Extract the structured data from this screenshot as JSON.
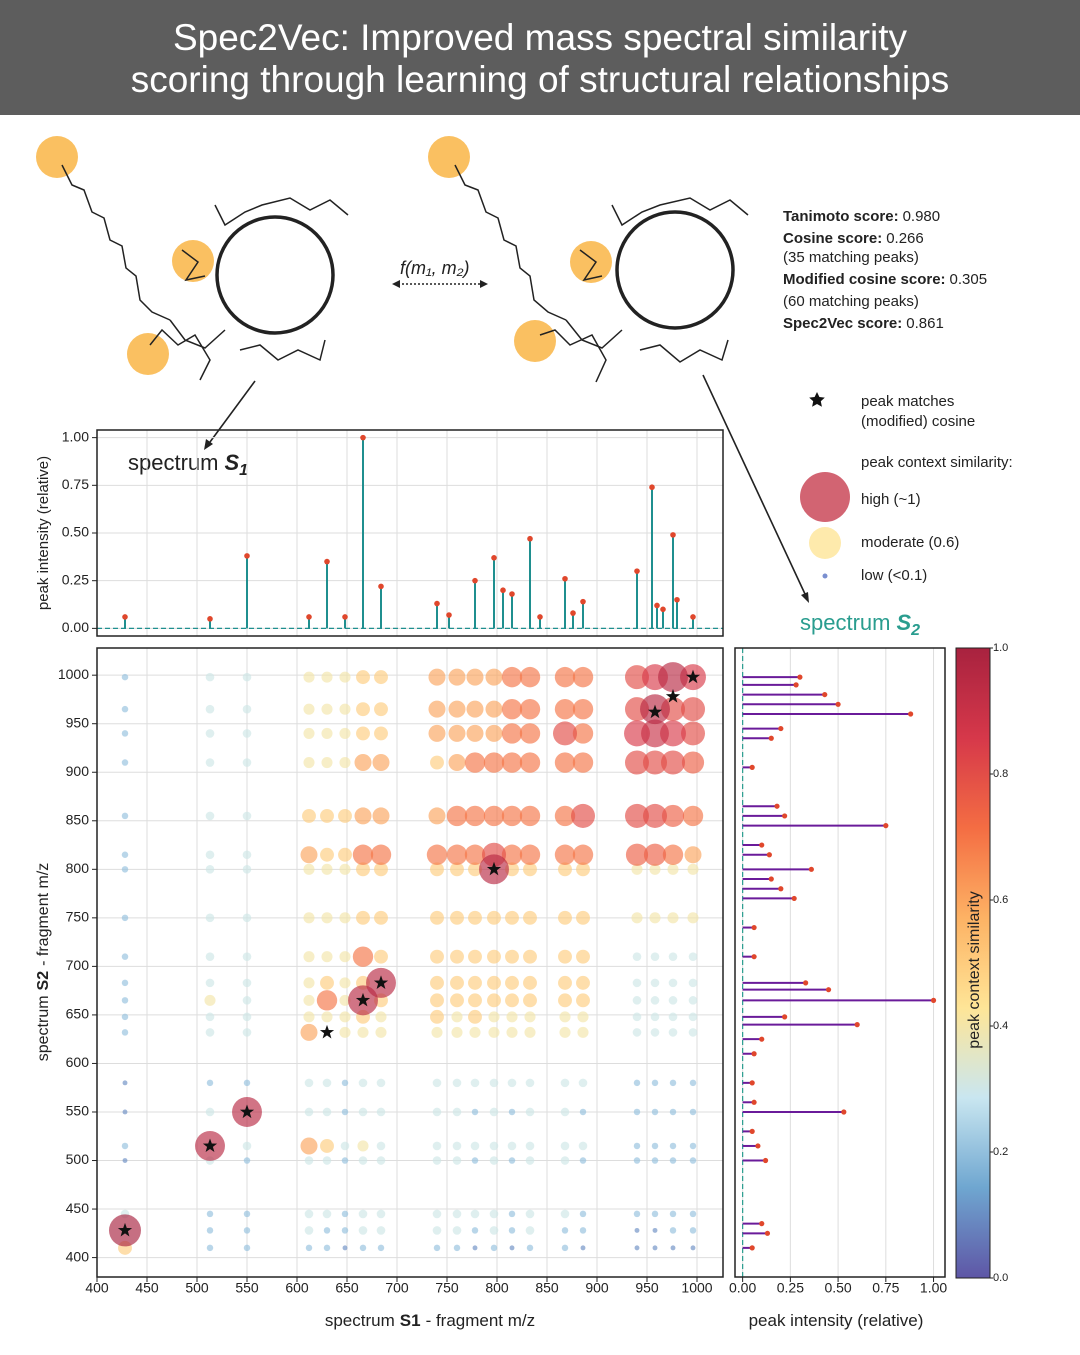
{
  "header": {
    "title": [
      "Spec2Vec: Improved mass spectral similarity",
      "scoring through learning of structural relationships"
    ]
  },
  "diagram": {
    "function_label": "f(m₁, m₂)"
  },
  "scores": [
    {
      "label": "Tanimoto score:",
      "value": "0.980"
    },
    {
      "label": "Cosine score:",
      "value": "0.266",
      "note": "(35 matching peaks)"
    },
    {
      "label": "Modified cosine score:",
      "value": "0.305",
      "note": "(60 matching peaks)"
    },
    {
      "label": "Spec2Vec score:",
      "value": "0.861"
    }
  ],
  "legend": {
    "star": [
      "peak matches",
      "(modified) cosine"
    ],
    "title": "peak context similarity:",
    "high": "high (~1)",
    "moderate": "moderate (0.6)",
    "low": "low (<0.1)"
  },
  "chart_data": [
    {
      "type": "stem",
      "label": {
        "text": "spectrum",
        "symbol": "S",
        "subscript": "1"
      },
      "ylabel": "peak intensity (relative)",
      "color": "#1f8f8f",
      "marker_color": "#e0472c",
      "grid": true,
      "x": [
        428,
        513,
        550,
        612,
        630,
        648,
        666,
        684,
        740,
        752,
        778,
        797,
        806,
        815,
        833,
        843,
        868,
        876,
        886,
        940,
        955,
        960,
        966,
        976,
        980,
        996
      ],
      "values": [
        0.06,
        0.05,
        0.38,
        0.06,
        0.35,
        0.06,
        1.0,
        0.22,
        0.13,
        0.07,
        0.25,
        0.37,
        0.2,
        0.18,
        0.47,
        0.06,
        0.26,
        0.08,
        0.14,
        0.3,
        0.74,
        0.12,
        0.1,
        0.49,
        0.15,
        0.06
      ],
      "xlim": [
        400,
        1026
      ],
      "xticks": [
        400,
        450,
        500,
        550,
        600,
        650,
        700,
        750,
        800,
        850,
        900,
        950,
        1000
      ],
      "ylim": [
        -0.04,
        1.04
      ],
      "yticks": [
        {
          "value": 0,
          "label": "0.00"
        },
        {
          "value": 0.25,
          "label": "0.25"
        },
        {
          "value": 0.5,
          "label": "0.50"
        },
        {
          "value": 0.75,
          "label": "0.75"
        },
        {
          "value": 1,
          "label": "1.00"
        }
      ]
    },
    {
      "type": "bubble_matrix",
      "xlabel": [
        "spectrum",
        "S1",
        "- fragment m/z"
      ],
      "ylabel": [
        "spectrum",
        "S2",
        "- fragment m/z"
      ],
      "grid": true,
      "columns": [
        428,
        513,
        550,
        612,
        630,
        648,
        666,
        684,
        740,
        760,
        778,
        797,
        815,
        833,
        868,
        886,
        940,
        958,
        976,
        996
      ],
      "rows": [
        410,
        428,
        445,
        500,
        515,
        550,
        580,
        632,
        648,
        665,
        683,
        710,
        750,
        800,
        815,
        855,
        910,
        940,
        965,
        998
      ],
      "similarity": [
        [
          0.5,
          0.2,
          0.2,
          0.2,
          0.2,
          0.1,
          0.2,
          0.2,
          0.2,
          0.2,
          0.1,
          0.2,
          0.1,
          0.2,
          0.2,
          0.1,
          0.1,
          0.1,
          0.1,
          0.1
        ],
        [
          1.0,
          0.2,
          0.2,
          0.3,
          0.2,
          0.2,
          0.3,
          0.3,
          0.3,
          0.3,
          0.2,
          0.3,
          0.2,
          0.3,
          0.2,
          0.2,
          0.1,
          0.1,
          0.2,
          0.2
        ],
        [
          0.3,
          0.2,
          0.2,
          0.3,
          0.3,
          0.2,
          0.3,
          0.3,
          0.3,
          0.3,
          0.3,
          0.3,
          0.2,
          0.3,
          0.3,
          0.2,
          0.2,
          0.2,
          0.2,
          0.2
        ],
        [
          0.1,
          0.3,
          0.2,
          0.3,
          0.3,
          0.2,
          0.3,
          0.3,
          0.3,
          0.3,
          0.2,
          0.3,
          0.2,
          0.3,
          0.3,
          0.2,
          0.2,
          0.2,
          0.2,
          0.2
        ],
        [
          0.2,
          0.95,
          0.3,
          0.6,
          0.5,
          0.3,
          0.4,
          0.3,
          0.3,
          0.3,
          0.3,
          0.3,
          0.3,
          0.3,
          0.3,
          0.3,
          0.2,
          0.2,
          0.2,
          0.2
        ],
        [
          0.1,
          0.3,
          0.95,
          0.3,
          0.3,
          0.2,
          0.3,
          0.3,
          0.3,
          0.3,
          0.2,
          0.3,
          0.2,
          0.3,
          0.3,
          0.2,
          0.2,
          0.2,
          0.2,
          0.2
        ],
        [
          0.1,
          0.2,
          0.2,
          0.3,
          0.3,
          0.2,
          0.3,
          0.3,
          0.3,
          0.3,
          0.3,
          0.3,
          0.3,
          0.3,
          0.3,
          0.3,
          0.2,
          0.2,
          0.2,
          0.2
        ],
        [
          0.2,
          0.3,
          0.3,
          0.6,
          0.1,
          0.4,
          0.4,
          0.4,
          0.4,
          0.4,
          0.4,
          0.4,
          0.4,
          0.4,
          0.4,
          0.4,
          0.3,
          0.3,
          0.3,
          0.3
        ],
        [
          0.2,
          0.3,
          0.3,
          0.4,
          0.4,
          0.4,
          0.5,
          0.4,
          0.5,
          0.4,
          0.5,
          0.4,
          0.4,
          0.4,
          0.4,
          0.4,
          0.3,
          0.3,
          0.3,
          0.3
        ],
        [
          0.2,
          0.4,
          0.3,
          0.4,
          0.7,
          0.4,
          0.95,
          0.5,
          0.5,
          0.5,
          0.5,
          0.5,
          0.5,
          0.5,
          0.5,
          0.5,
          0.3,
          0.3,
          0.3,
          0.3
        ],
        [
          0.2,
          0.3,
          0.3,
          0.4,
          0.5,
          0.4,
          0.5,
          0.95,
          0.5,
          0.5,
          0.5,
          0.5,
          0.5,
          0.5,
          0.5,
          0.5,
          0.3,
          0.3,
          0.3,
          0.3
        ],
        [
          0.2,
          0.3,
          0.3,
          0.4,
          0.4,
          0.4,
          0.7,
          0.5,
          0.5,
          0.5,
          0.5,
          0.5,
          0.5,
          0.5,
          0.5,
          0.5,
          0.3,
          0.3,
          0.3,
          0.3
        ],
        [
          0.2,
          0.3,
          0.3,
          0.4,
          0.4,
          0.4,
          0.5,
          0.5,
          0.5,
          0.5,
          0.5,
          0.5,
          0.5,
          0.5,
          0.5,
          0.5,
          0.4,
          0.4,
          0.4,
          0.4
        ],
        [
          0.2,
          0.3,
          0.3,
          0.4,
          0.4,
          0.4,
          0.5,
          0.5,
          0.5,
          0.5,
          0.5,
          0.95,
          0.5,
          0.5,
          0.5,
          0.5,
          0.4,
          0.4,
          0.4,
          0.4
        ],
        [
          0.2,
          0.3,
          0.3,
          0.6,
          0.5,
          0.5,
          0.7,
          0.7,
          0.7,
          0.7,
          0.7,
          0.8,
          0.7,
          0.7,
          0.7,
          0.7,
          0.75,
          0.75,
          0.7,
          0.6
        ],
        [
          0.2,
          0.3,
          0.3,
          0.5,
          0.5,
          0.5,
          0.6,
          0.6,
          0.6,
          0.7,
          0.7,
          0.7,
          0.7,
          0.7,
          0.7,
          0.8,
          0.8,
          0.8,
          0.75,
          0.7
        ],
        [
          0.2,
          0.3,
          0.3,
          0.4,
          0.4,
          0.4,
          0.6,
          0.6,
          0.5,
          0.6,
          0.7,
          0.7,
          0.7,
          0.7,
          0.7,
          0.7,
          0.8,
          0.8,
          0.8,
          0.75
        ],
        [
          0.2,
          0.3,
          0.3,
          0.4,
          0.4,
          0.4,
          0.5,
          0.5,
          0.6,
          0.6,
          0.6,
          0.6,
          0.7,
          0.7,
          0.8,
          0.7,
          0.85,
          0.9,
          0.85,
          0.8
        ],
        [
          0.2,
          0.3,
          0.3,
          0.4,
          0.4,
          0.4,
          0.5,
          0.5,
          0.6,
          0.6,
          0.6,
          0.6,
          0.7,
          0.7,
          0.7,
          0.7,
          0.8,
          0.95,
          0.8,
          0.8
        ],
        [
          0.2,
          0.3,
          0.3,
          0.4,
          0.4,
          0.4,
          0.5,
          0.5,
          0.6,
          0.6,
          0.6,
          0.6,
          0.7,
          0.7,
          0.7,
          0.7,
          0.8,
          0.85,
          0.95,
          0.85
        ]
      ],
      "matches_x": [
        428,
        513,
        550,
        630,
        666,
        684,
        797,
        958,
        976,
        996
      ],
      "matches_y": [
        428,
        515,
        550,
        632,
        665,
        683,
        800,
        962,
        978,
        998
      ],
      "xlim": [
        400,
        1026
      ],
      "xticks": [
        400,
        450,
        500,
        550,
        600,
        650,
        700,
        750,
        800,
        850,
        900,
        950,
        1000
      ],
      "ylim": [
        380,
        1028
      ],
      "yticks": [
        400,
        450,
        500,
        550,
        600,
        650,
        700,
        750,
        800,
        850,
        900,
        950,
        1000
      ]
    },
    {
      "type": "hstem",
      "label": {
        "text": "spectrum",
        "symbol": "S",
        "subscript": "2"
      },
      "label_color": "#2a9d8f",
      "xlabel": "peak intensity (relative)",
      "color": "#6a1b9a",
      "marker_color": "#e0472c",
      "baseline_color": "#2a9d8f",
      "grid": true,
      "y": [
        410,
        425,
        435,
        500,
        515,
        530,
        550,
        560,
        580,
        610,
        625,
        640,
        648,
        665,
        676,
        683,
        710,
        740,
        770,
        780,
        790,
        800,
        815,
        825,
        845,
        855,
        865,
        905,
        935,
        945,
        960,
        970,
        980,
        990,
        998
      ],
      "values": [
        0.05,
        0.13,
        0.1,
        0.12,
        0.08,
        0.05,
        0.53,
        0.06,
        0.05,
        0.06,
        0.1,
        0.6,
        0.22,
        1.0,
        0.45,
        0.33,
        0.06,
        0.06,
        0.27,
        0.2,
        0.15,
        0.36,
        0.14,
        0.1,
        0.75,
        0.22,
        0.18,
        0.05,
        0.15,
        0.2,
        0.88,
        0.5,
        0.43,
        0.28,
        0.3
      ],
      "xlim": [
        -0.04,
        1.06
      ],
      "xticks": [
        {
          "value": 0,
          "label": "0.00"
        },
        {
          "value": 0.25,
          "label": "0.25"
        },
        {
          "value": 0.5,
          "label": "0.50"
        },
        {
          "value": 0.75,
          "label": "0.75"
        },
        {
          "value": 1,
          "label": "1.00"
        }
      ],
      "ylim": [
        380,
        1028
      ]
    },
    {
      "type": "colorbar",
      "label": "peak context similarity",
      "lim": [
        0,
        1
      ],
      "ticks": [
        {
          "value": 0,
          "label": "0.0"
        },
        {
          "value": 0.2,
          "label": "0.2"
        },
        {
          "value": 0.4,
          "label": "0.4"
        },
        {
          "value": 0.6,
          "label": "0.6"
        },
        {
          "value": 0.8,
          "label": "0.8"
        },
        {
          "value": 1,
          "label": "1.0"
        }
      ],
      "colormap": [
        "#5e56a6",
        "#6fa6d0",
        "#c9e6f0",
        "#fee597",
        "#fdb264",
        "#f46d43",
        "#d6384a",
        "#a8223f"
      ]
    }
  ]
}
